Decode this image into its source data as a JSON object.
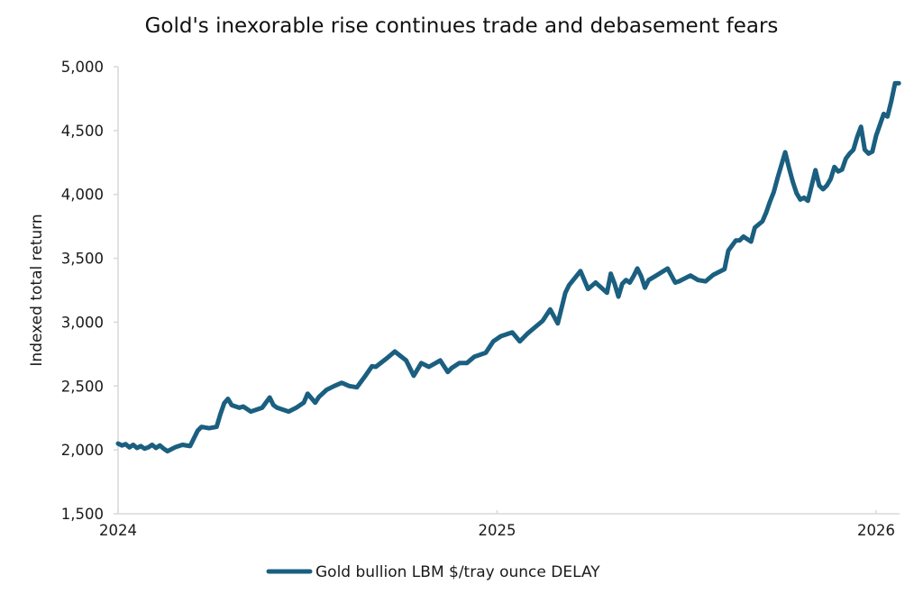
{
  "chart_data": {
    "type": "line",
    "title": "Gold's inexorable rise continues trade and debasement fears",
    "xlabel": "",
    "ylabel": "Indexed total return",
    "xlim": [
      2024.0,
      2026.06
    ],
    "ylim": [
      1500,
      5000
    ],
    "x_ticks": [
      2024,
      2025,
      2026
    ],
    "x_tick_labels": [
      "2024",
      "2025",
      "2026"
    ],
    "y_ticks": [
      1500,
      2000,
      2500,
      3000,
      3500,
      4000,
      4500,
      5000
    ],
    "y_tick_labels": [
      "1,500",
      "2,000",
      "2,500",
      "3,000",
      "3,500",
      "4,000",
      "4,500",
      "5,000"
    ],
    "grid": false,
    "legend_position": "bottom-center",
    "series": [
      {
        "name": "Gold bullion LBM $/tray ounce DELAY",
        "color": "#1b5f80",
        "x": [
          2024.0,
          2024.01,
          2024.02,
          2024.03,
          2024.04,
          2024.05,
          2024.06,
          2024.07,
          2024.08,
          2024.09,
          2024.1,
          2024.11,
          2024.12,
          2024.13,
          2024.15,
          2024.17,
          2024.19,
          2024.21,
          2024.22,
          2024.24,
          2024.26,
          2024.27,
          2024.28,
          2024.29,
          2024.3,
          2024.32,
          2024.33,
          2024.35,
          2024.38,
          2024.4,
          2024.41,
          2024.42,
          2024.45,
          2024.47,
          2024.49,
          2024.5,
          2024.52,
          2024.53,
          2024.55,
          2024.57,
          2024.59,
          2024.61,
          2024.63,
          2024.65,
          2024.67,
          2024.68,
          2024.71,
          2024.73,
          2024.76,
          2024.78,
          2024.8,
          2024.82,
          2024.85,
          2024.87,
          2024.88,
          2024.9,
          2024.92,
          2024.94,
          2024.97,
          2024.99,
          2025.01,
          2025.04,
          2025.06,
          2025.08,
          2025.1,
          2025.12,
          2025.14,
          2025.16,
          2025.18,
          2025.19,
          2025.22,
          2025.24,
          2025.26,
          2025.29,
          2025.3,
          2025.31,
          2025.32,
          2025.33,
          2025.34,
          2025.35,
          2025.36,
          2025.37,
          2025.38,
          2025.39,
          2025.4,
          2025.42,
          2025.45,
          2025.47,
          2025.48,
          2025.51,
          2025.53,
          2025.55,
          2025.57,
          2025.6,
          2025.61,
          2025.63,
          2025.64,
          2025.65,
          2025.67,
          2025.68,
          2025.7,
          2025.71,
          2025.72,
          2025.73,
          2025.74,
          2025.75,
          2025.76,
          2025.77,
          2025.78,
          2025.79,
          2025.8,
          2025.81,
          2025.82,
          2025.83,
          2025.84,
          2025.85,
          2025.86,
          2025.87,
          2025.88,
          2025.89,
          2025.9,
          2025.91,
          2025.92,
          2025.93,
          2025.94,
          2025.95,
          2025.96,
          2025.97,
          2025.98,
          2025.99,
          2026.0,
          2026.01,
          2026.02,
          2026.03,
          2026.04,
          2026.05,
          2026.06
        ],
        "y": [
          2050,
          2035,
          2045,
          2020,
          2040,
          2015,
          2030,
          2010,
          2020,
          2040,
          2015,
          2035,
          2010,
          1990,
          2020,
          2040,
          2030,
          2150,
          2180,
          2170,
          2180,
          2280,
          2365,
          2400,
          2350,
          2330,
          2340,
          2300,
          2330,
          2410,
          2350,
          2330,
          2300,
          2330,
          2370,
          2440,
          2370,
          2415,
          2470,
          2500,
          2525,
          2500,
          2490,
          2570,
          2655,
          2650,
          2720,
          2770,
          2700,
          2580,
          2680,
          2650,
          2700,
          2610,
          2640,
          2680,
          2680,
          2730,
          2760,
          2850,
          2890,
          2920,
          2850,
          2910,
          2960,
          3010,
          3100,
          2990,
          3230,
          3290,
          3400,
          3260,
          3310,
          3230,
          3380,
          3300,
          3200,
          3300,
          3330,
          3310,
          3360,
          3420,
          3360,
          3270,
          3330,
          3365,
          3420,
          3310,
          3320,
          3365,
          3330,
          3320,
          3370,
          3415,
          3560,
          3640,
          3640,
          3670,
          3630,
          3740,
          3790,
          3860,
          3945,
          4020,
          4130,
          4230,
          4330,
          4210,
          4100,
          4010,
          3960,
          3975,
          3950,
          4070,
          4190,
          4070,
          4040,
          4070,
          4120,
          4215,
          4180,
          4195,
          4280,
          4320,
          4350,
          4450,
          4530,
          4350,
          4320,
          4335,
          4460,
          4545,
          4630,
          4610,
          4730,
          4870,
          4870
        ]
      }
    ]
  }
}
